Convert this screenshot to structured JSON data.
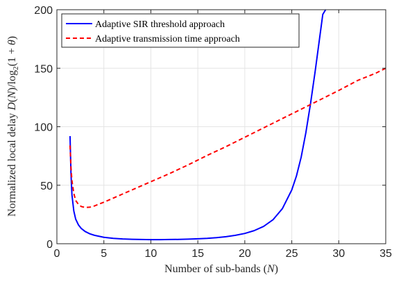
{
  "chart_data": {
    "type": "line",
    "xlabel": "Number of sub-bands (N)",
    "ylabel": "Normalized local delay D(N)/log2(1 + θ)",
    "xlim": [
      0,
      35
    ],
    "ylim": [
      0,
      200
    ],
    "xticks": [
      0,
      5,
      10,
      15,
      20,
      25,
      30,
      35
    ],
    "yticks": [
      0,
      50,
      100,
      150,
      200
    ],
    "grid": true,
    "legend_position": "top-left",
    "series": [
      {
        "name": "Adaptive SIR threshold approach",
        "color": "#0000ff",
        "dash": "solid",
        "x": [
          1.4,
          1.5,
          1.6,
          1.8,
          2.0,
          2.3,
          2.6,
          3.0,
          3.5,
          4.0,
          5.0,
          6.0,
          7.0,
          8.0,
          9.0,
          10.0,
          11.0,
          12.0,
          13.0,
          14.0,
          15.0,
          16.0,
          17.0,
          18.0,
          19.0,
          20.0,
          21.0,
          22.0,
          23.0,
          24.0,
          25.0,
          25.5,
          26.0,
          26.5,
          27.0,
          27.5,
          28.0,
          28.3,
          28.6
        ],
        "y": [
          92,
          60,
          42,
          28,
          21,
          16,
          13,
          10.5,
          8.5,
          7.2,
          5.5,
          4.6,
          4.1,
          3.8,
          3.6,
          3.5,
          3.5,
          3.6,
          3.7,
          3.9,
          4.2,
          4.6,
          5.2,
          6.0,
          7.2,
          8.8,
          11.2,
          14.8,
          20.5,
          30.0,
          46.0,
          58.0,
          74.0,
          95.0,
          120.0,
          148.0,
          178.0,
          196.0,
          200.0
        ]
      },
      {
        "name": "Adaptive transmission time approach",
        "color": "#ff0000",
        "dash": "dashed",
        "x": [
          1.4,
          1.5,
          1.6,
          1.8,
          2.0,
          2.3,
          2.6,
          3.0,
          3.5,
          4.0,
          5.0,
          6.0,
          7.0,
          8.0,
          9.0,
          10.0,
          12.0,
          14.0,
          16.0,
          18.0,
          20.0,
          22.0,
          24.0,
          26.0,
          28.0,
          30.0,
          32.0,
          34.0,
          35.0
        ],
        "y": [
          84,
          65,
          54,
          43,
          37,
          33.5,
          31.8,
          31.0,
          31.2,
          32.3,
          35.5,
          39.0,
          42.5,
          46.0,
          49.5,
          53.0,
          60.0,
          67.5,
          75.5,
          83.0,
          91.0,
          99.0,
          107.0,
          115.0,
          123.0,
          131.0,
          139.5,
          146.0,
          150.0
        ]
      }
    ]
  }
}
